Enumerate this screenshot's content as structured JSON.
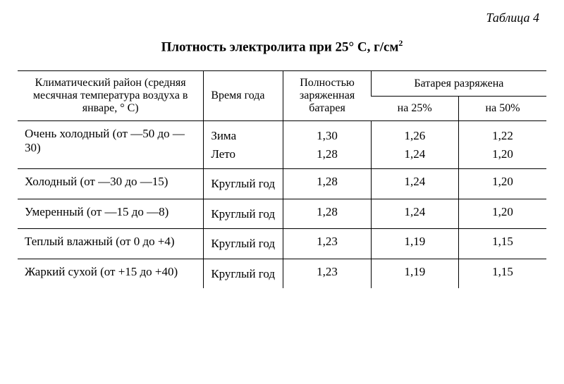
{
  "tableLabel": "Таблица 4",
  "title": "Плотность электролита при 25° С, г/см",
  "titleSuperscript": "2",
  "headers": {
    "climate": "Климатический район (средняя месячная температура воздуха в январе, ° С)",
    "season": "Время года",
    "fullCharge": "Полностью заряженная батарея",
    "discharged": "Батарея разряжена",
    "d25": "на 25%",
    "d50": "на 50%"
  },
  "rows": [
    {
      "climate": "Очень холодный (от —50 до —30)",
      "season": "Зима\nЛето",
      "full": "1,30\n1,28",
      "p25": "1,26\n1,24",
      "p50": "1,22\n1,20"
    },
    {
      "climate": "Холодный (от —30 до —15)",
      "season": "Круглый год",
      "full": "1,28",
      "p25": "1,24",
      "p50": "1,20"
    },
    {
      "climate": "Умеренный (от —15 до —8)",
      "season": "Круглый год",
      "full": "1,28",
      "p25": "1,24",
      "p50": "1,20"
    },
    {
      "climate": "Теплый влажный (от 0 до +4)",
      "season": "Круглый год",
      "full": "1,23",
      "p25": "1,19",
      "p50": "1,15"
    },
    {
      "climate": "Жаркий сухой (от +15 до +40)",
      "season": "Круглый год",
      "full": "1,23",
      "p25": "1,19",
      "p50": "1,15"
    }
  ],
  "styling": {
    "background": "#ffffff",
    "text_color": "#000000",
    "border_color": "#000000",
    "font_family": "Times New Roman",
    "title_fontsize": 19,
    "body_fontsize": 17,
    "header_fontsize": 16
  }
}
